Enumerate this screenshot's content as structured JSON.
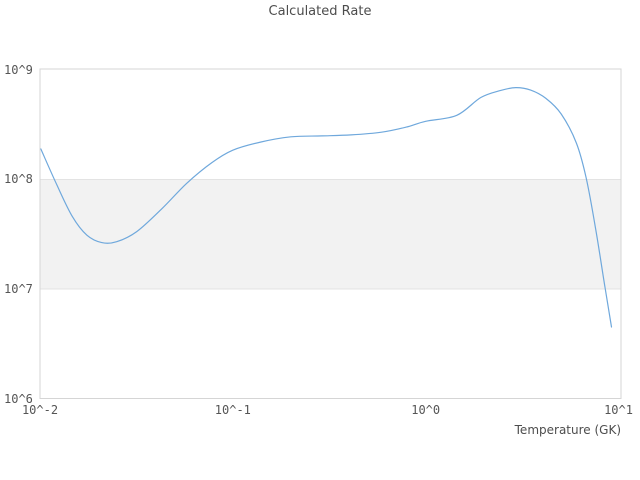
{
  "chart_data": {
    "type": "line",
    "title": "Calculated Rate",
    "xlabel": "Temperature (GK)",
    "ylabel": "",
    "x_scale": "log",
    "y_scale": "log",
    "x_range": [
      0.01,
      10.3
    ],
    "y_range": [
      1000000.0,
      1020000000.0
    ],
    "x_ticks": [
      {
        "value": 0.01,
        "label": "10^-2"
      },
      {
        "value": 0.1,
        "label": "10^-1"
      },
      {
        "value": 1,
        "label": "10^0"
      },
      {
        "value": 10,
        "label": "10^1"
      }
    ],
    "y_ticks": [
      {
        "value": 1000000.0,
        "label": "10^6"
      },
      {
        "value": 10000000.0,
        "label": "10^7"
      },
      {
        "value": 100000000.0,
        "label": "10^8"
      },
      {
        "value": 1000000000.0,
        "label": "10^9"
      }
    ],
    "band": {
      "from": 10000000.0,
      "to": 100000000.0,
      "fill": "#f2f2f2",
      "edge": "#e3e3e3"
    },
    "frame_color": "#d5d5d5",
    "grid": "none (single shaded horizontal band between 1e7 and 1e8)",
    "legend": "none",
    "series": [
      {
        "name": "Calculated Rate",
        "color": "#6fa8dc",
        "points": [
          [
            0.0101,
            190000000.0
          ],
          [
            0.0122,
            90000000.0
          ],
          [
            0.0147,
            46000000.0
          ],
          [
            0.0175,
            31000000.0
          ],
          [
            0.0209,
            26500000.0
          ],
          [
            0.025,
            27000000.0
          ],
          [
            0.0318,
            33500000.0
          ],
          [
            0.0428,
            54000000.0
          ],
          [
            0.0576,
            92000000.0
          ],
          [
            0.0777,
            142000000.0
          ],
          [
            0.1,
            185000000.0
          ],
          [
            0.14,
            220000000.0
          ],
          [
            0.2,
            245000000.0
          ],
          [
            0.29,
            250000000.0
          ],
          [
            0.41,
            255000000.0
          ],
          [
            0.59,
            270000000.0
          ],
          [
            0.79,
            300000000.0
          ],
          [
            1.0,
            340000000.0
          ],
          [
            1.45,
            385000000.0
          ],
          [
            1.93,
            560000000.0
          ],
          [
            2.45,
            650000000.0
          ],
          [
            2.93,
            690000000.0
          ],
          [
            3.5,
            655000000.0
          ],
          [
            4.2,
            550000000.0
          ],
          [
            5.05,
            395000000.0
          ],
          [
            6.05,
            215000000.0
          ],
          [
            6.78,
            105000000.0
          ],
          [
            7.6,
            36000000.0
          ],
          [
            8.5,
            10500000.0
          ],
          [
            9.2,
            4500000.0
          ]
        ]
      }
    ]
  },
  "text_colors": {
    "title": "#4d4d4d",
    "ticks": "#555555"
  }
}
